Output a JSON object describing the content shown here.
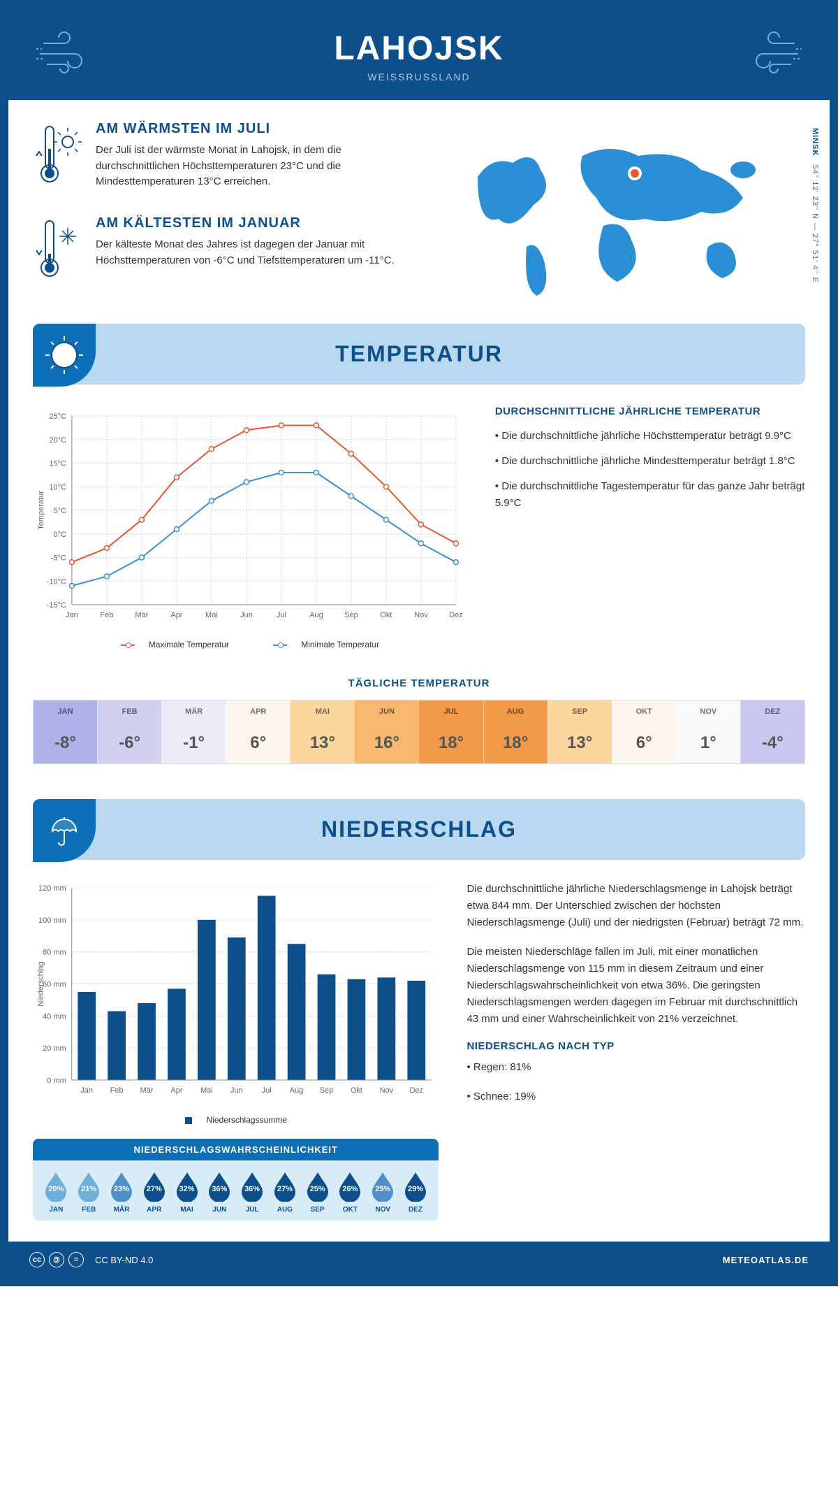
{
  "header": {
    "title": "LAHOJSK",
    "country": "WEISSRUSSLAND"
  },
  "coords": {
    "city": "MINSK",
    "lat": "54° 12' 23'' N",
    "lon": "27° 51' 4'' E"
  },
  "warmest": {
    "title": "AM WÄRMSTEN IM JULI",
    "text": "Der Juli ist der wärmste Monat in Lahojsk, in dem die durchschnittlichen Höchsttemperaturen 23°C und die Mindesttemperaturen 13°C erreichen."
  },
  "coldest": {
    "title": "AM KÄLTESTEN IM JANUAR",
    "text": "Der kälteste Monat des Jahres ist dagegen der Januar mit Höchsttemperaturen von -6°C und Tiefsttemperaturen um -11°C."
  },
  "temp_section": {
    "title": "TEMPERATUR",
    "months": [
      "Jan",
      "Feb",
      "Mär",
      "Apr",
      "Mai",
      "Jun",
      "Jul",
      "Aug",
      "Sep",
      "Okt",
      "Nov",
      "Dez"
    ],
    "max": [
      -6,
      -3,
      3,
      12,
      18,
      22,
      23,
      23,
      17,
      10,
      2,
      -2
    ],
    "min": [
      -11,
      -9,
      -5,
      1,
      7,
      11,
      13,
      13,
      8,
      3,
      -2,
      -6
    ],
    "ylabel": "Temperatur",
    "ymin": -15,
    "ymax": 25,
    "ystep": 5,
    "max_color": "#e8552f",
    "min_color": "#3b8fd1",
    "grid_color": "#c8d8e8",
    "axis_color": "#888",
    "legend_max": "Maximale Temperatur",
    "legend_min": "Minimale Temperatur",
    "side_title": "DURCHSCHNITTLICHE JÄHRLICHE TEMPERATUR",
    "bullets": [
      "• Die durchschnittliche jährliche Höchsttemperatur beträgt 9.9°C",
      "• Die durchschnittliche jährliche Mindesttemperatur beträgt 1.8°C",
      "• Die durchschnittliche Tagestemperatur für das ganze Jahr beträgt 5.9°C"
    ],
    "daily_title": "TÄGLICHE TEMPERATUR",
    "daily": {
      "months": [
        "JAN",
        "FEB",
        "MÄR",
        "APR",
        "MAI",
        "JUN",
        "JUL",
        "AUG",
        "SEP",
        "OKT",
        "NOV",
        "DEZ"
      ],
      "values": [
        "-8°",
        "-6°",
        "-1°",
        "6°",
        "13°",
        "16°",
        "18°",
        "18°",
        "13°",
        "6°",
        "1°",
        "-4°"
      ],
      "bg": [
        "#b0b0e8",
        "#d0d0f0",
        "#ececf8",
        "#fdf6ec",
        "#fbd79f",
        "#f6b86f",
        "#f2994a",
        "#f2994a",
        "#fbd79f",
        "#fdf6ec",
        "#f8f8f8",
        "#c8c8ee"
      ]
    }
  },
  "precip_section": {
    "title": "NIEDERSCHLAG",
    "months": [
      "Jan",
      "Feb",
      "Mär",
      "Apr",
      "Mai",
      "Jun",
      "Jul",
      "Aug",
      "Sep",
      "Okt",
      "Nov",
      "Dez"
    ],
    "values": [
      55,
      43,
      48,
      57,
      100,
      89,
      115,
      85,
      66,
      63,
      64,
      62
    ],
    "ylabel": "Niederschlag",
    "ymax": 120,
    "ystep": 20,
    "bar_color": "#0d4f8b",
    "grid_color": "#c8d8e8",
    "legend": "Niederschlagssumme",
    "text1": "Die durchschnittliche jährliche Niederschlagsmenge in Lahojsk beträgt etwa 844 mm. Der Unterschied zwischen der höchsten Niederschlagsmenge (Juli) und der niedrigsten (Februar) beträgt 72 mm.",
    "text2": "Die meisten Niederschläge fallen im Juli, mit einer monatlichen Niederschlagsmenge von 115 mm in diesem Zeitraum und einer Niederschlagswahrscheinlichkeit von etwa 36%. Die geringsten Niederschlagsmengen werden dagegen im Februar mit durchschnittlich 43 mm und einer Wahrscheinlichkeit von 21% verzeichnet.",
    "type_title": "NIEDERSCHLAG NACH TYP",
    "type_bullets": [
      "• Regen: 81%",
      "• Schnee: 19%"
    ],
    "prob_title": "NIEDERSCHLAGSWAHRSCHEINLICHKEIT",
    "prob": {
      "months": [
        "JAN",
        "FEB",
        "MÄR",
        "APR",
        "MAI",
        "JUN",
        "JUL",
        "AUG",
        "SEP",
        "OKT",
        "NOV",
        "DEZ"
      ],
      "pct": [
        "20%",
        "21%",
        "23%",
        "27%",
        "32%",
        "36%",
        "36%",
        "27%",
        "25%",
        "26%",
        "25%",
        "29%"
      ],
      "colors": [
        "#6faedb",
        "#6faedb",
        "#5090c8",
        "#0d4f8b",
        "#0d4f8b",
        "#0d4f8b",
        "#0d4f8b",
        "#0d4f8b",
        "#0d4f8b",
        "#0d4f8b",
        "#5090c8",
        "#0d4f8b"
      ]
    }
  },
  "footer": {
    "license": "CC BY-ND 4.0",
    "site": "METEOATLAS.DE"
  },
  "colors": {
    "primary": "#0d4f8b",
    "light_blue": "#b8d9f0",
    "mid_blue": "#0d6fb8",
    "map_blue": "#2a8fd4"
  }
}
